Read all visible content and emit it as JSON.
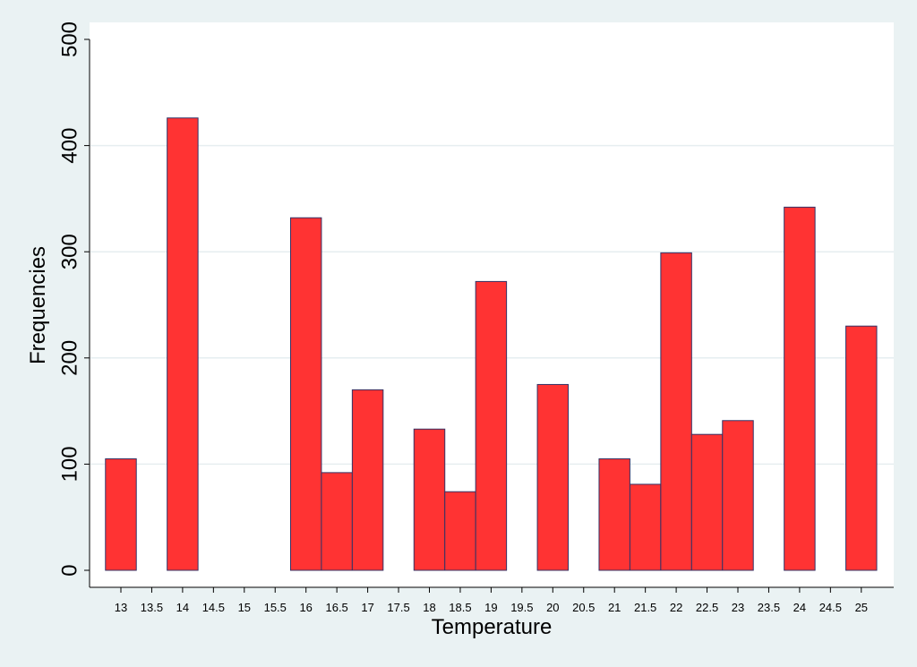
{
  "chart_data": {
    "type": "bar",
    "xlabel": "Temperature",
    "ylabel": "Frequencies",
    "ylim": [
      0,
      500
    ],
    "yticks": [
      0,
      100,
      200,
      300,
      400,
      500
    ],
    "xticks": [
      13,
      13.5,
      14,
      14.5,
      15,
      15.5,
      16,
      16.5,
      17,
      17.5,
      18,
      18.5,
      19,
      19.5,
      20,
      20.5,
      21,
      21.5,
      22,
      22.5,
      23,
      23.5,
      24,
      24.5,
      25
    ],
    "bar_width": 0.5,
    "bars": [
      {
        "x": 13,
        "value": 105
      },
      {
        "x": 14,
        "value": 426
      },
      {
        "x": 16,
        "value": 332
      },
      {
        "x": 16.5,
        "value": 92
      },
      {
        "x": 17,
        "value": 170
      },
      {
        "x": 18,
        "value": 133
      },
      {
        "x": 18.5,
        "value": 74
      },
      {
        "x": 19,
        "value": 272
      },
      {
        "x": 20,
        "value": 175
      },
      {
        "x": 21,
        "value": 105
      },
      {
        "x": 21.5,
        "value": 81
      },
      {
        "x": 22,
        "value": 299
      },
      {
        "x": 22.5,
        "value": 128
      },
      {
        "x": 23,
        "value": 141
      },
      {
        "x": 24,
        "value": 342
      },
      {
        "x": 25,
        "value": 230
      }
    ],
    "grid": true,
    "colors": {
      "bar_fill": "#ff3333",
      "bar_stroke": "#333366",
      "outer_background": "#eaf2f3",
      "plot_background": "#ffffff",
      "gridline": "#e6eef0"
    }
  }
}
